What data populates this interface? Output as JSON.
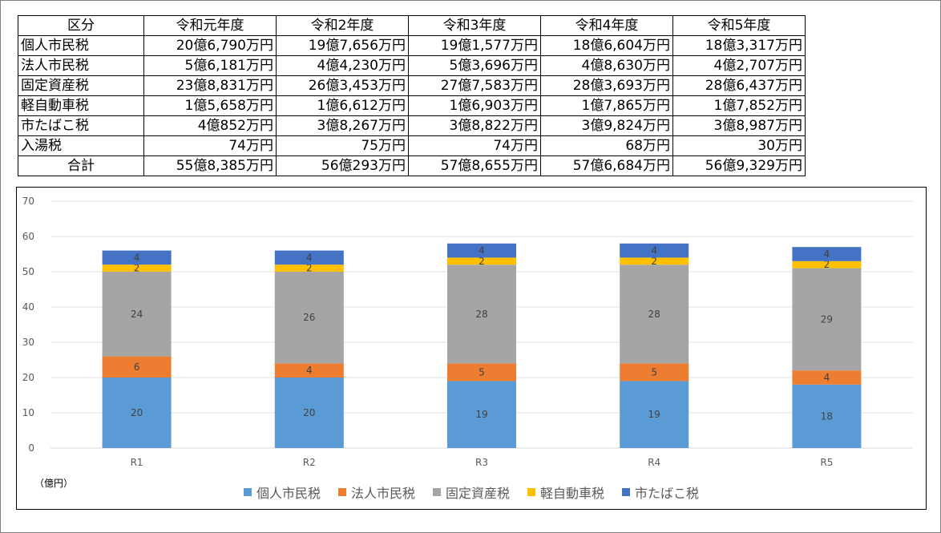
{
  "table": {
    "header": [
      "区分",
      "令和元年度",
      "令和2年度",
      "令和3年度",
      "令和4年度",
      "令和5年度"
    ],
    "rows": [
      {
        "label": "個人市民税",
        "values": [
          "20億6,790万円",
          "19億7,656万円",
          "19億1,577万円",
          "18億6,604万円",
          "18億3,317万円"
        ]
      },
      {
        "label": "法人市民税",
        "values": [
          "5億6,181万円",
          "4億4,230万円",
          "5億3,696万円",
          "4億8,630万円",
          "4億2,707万円"
        ]
      },
      {
        "label": "固定資産税",
        "values": [
          "23億8,831万円",
          "26億3,453万円",
          "27億7,583万円",
          "28億3,693万円",
          "28億6,437万円"
        ]
      },
      {
        "label": "軽自動車税",
        "values": [
          "1億5,658万円",
          "1億6,612万円",
          "1億6,903万円",
          "1億7,865万円",
          "1億7,852万円"
        ]
      },
      {
        "label": "市たばこ税",
        "values": [
          "4億852万円",
          "3億8,267万円",
          "3億8,822万円",
          "3億9,824万円",
          "3億8,987万円"
        ]
      },
      {
        "label": "入湯税",
        "values": [
          "74万円",
          "75万円",
          "74万円",
          "68万円",
          "30万円"
        ]
      }
    ],
    "total": {
      "label": "合計",
      "values": [
        "55億8,385万円",
        "56億293万円",
        "57億8,655万円",
        "57億6,684万円",
        "56億9,329万円"
      ]
    }
  },
  "chart_data": {
    "type": "bar",
    "stacked": true,
    "categories": [
      "R1",
      "R2",
      "R3",
      "R4",
      "R5"
    ],
    "series": [
      {
        "name": "個人市民税",
        "color": "#5b9bd5",
        "values": [
          20,
          20,
          19,
          19,
          18
        ]
      },
      {
        "name": "法人市民税",
        "color": "#ed7d31",
        "values": [
          6,
          4,
          5,
          5,
          4
        ]
      },
      {
        "name": "固定資産税",
        "color": "#a5a5a5",
        "values": [
          24,
          26,
          28,
          28,
          29
        ]
      },
      {
        "name": "軽自動車税",
        "color": "#ffc000",
        "values": [
          2,
          2,
          2,
          2,
          2
        ]
      },
      {
        "name": "市たばこ税",
        "color": "#4472c4",
        "values": [
          4,
          4,
          4,
          4,
          4
        ]
      }
    ],
    "ylim": [
      0,
      70
    ],
    "yticks": [
      0,
      10,
      20,
      30,
      40,
      50,
      60,
      70
    ],
    "unit_label": "（億円）",
    "grid": true,
    "legend_position": "bottom"
  }
}
